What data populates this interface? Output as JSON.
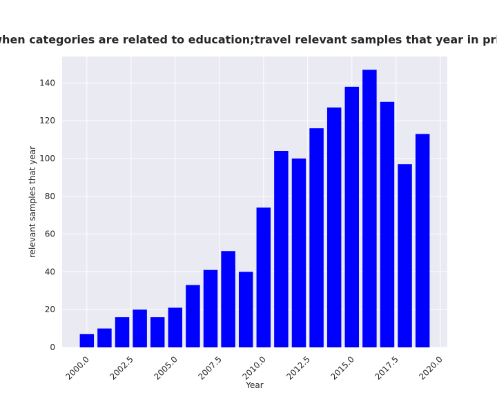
{
  "chart_data": {
    "type": "bar",
    "title": "Number of samples when categories are related to education;travel relevant samples that year in privacy policies by year",
    "xlabel": "Year",
    "ylabel": "relevant samples that year",
    "x": [
      2000,
      2001,
      2002,
      2003,
      2004,
      2005,
      2006,
      2007,
      2008,
      2009,
      2010,
      2011,
      2012,
      2013,
      2014,
      2015,
      2016,
      2017,
      2018,
      2019
    ],
    "values": [
      7,
      10,
      16,
      20,
      16,
      21,
      33,
      41,
      51,
      40,
      74,
      104,
      100,
      116,
      127,
      138,
      147,
      130,
      97,
      113
    ],
    "xlim": [
      1998.6,
      2020.4
    ],
    "ylim": [
      0,
      154
    ],
    "xticks": [
      "2000.0",
      "2002.5",
      "2005.0",
      "2007.5",
      "2010.0",
      "2012.5",
      "2015.0",
      "2017.5",
      "2020.0"
    ],
    "yticks": [
      "0",
      "20",
      "40",
      "60",
      "80",
      "100",
      "120",
      "140"
    ],
    "bar_color": "#0000ff",
    "plot_background": "#eaeaf2",
    "grid": true
  }
}
